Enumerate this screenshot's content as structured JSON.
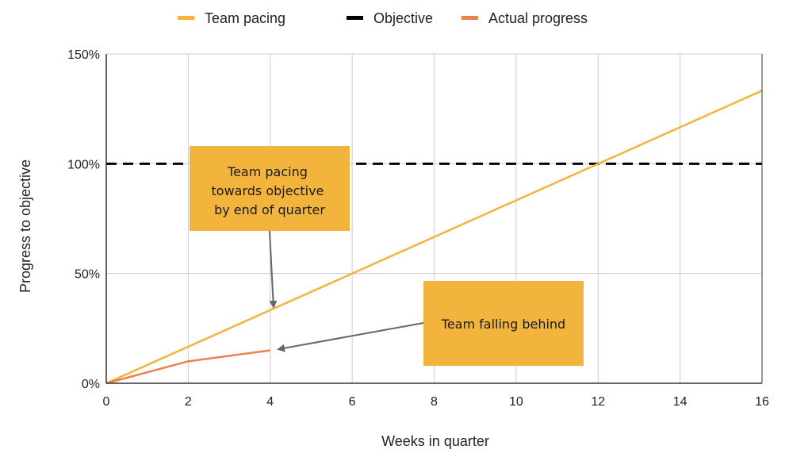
{
  "chart_data": {
    "type": "line",
    "xlabel": "Weeks in quarter",
    "ylabel": "Progress to objective",
    "xlim": [
      0,
      16
    ],
    "ylim": [
      0,
      150
    ],
    "x_ticks": [
      0,
      2,
      4,
      6,
      8,
      10,
      12,
      14,
      16
    ],
    "y_ticks": [
      0,
      50,
      100,
      150
    ],
    "y_tick_labels": [
      "0%",
      "50%",
      "100%",
      "150%"
    ],
    "grid": true,
    "legend_position": "top",
    "series": [
      {
        "name": "Team pacing",
        "color": "#f3b43e",
        "style": "solid",
        "x": [
          0,
          16
        ],
        "y": [
          0,
          133.3
        ]
      },
      {
        "name": "Objective",
        "color": "#000000",
        "style": "dashed",
        "x": [
          0,
          16
        ],
        "y": [
          100,
          100
        ]
      },
      {
        "name": "Actual progress",
        "color": "#e8834f",
        "style": "solid",
        "x": [
          0,
          2,
          4
        ],
        "y": [
          0,
          10,
          15
        ]
      }
    ],
    "annotations": [
      {
        "name": "pacing-callout",
        "lines": [
          "Team pacing",
          "towards objective",
          "by end of quarter"
        ],
        "box_color": "#f3b43e",
        "points_to": {
          "x": 4.1,
          "y": 34
        }
      },
      {
        "name": "behind-callout",
        "lines": [
          "Team falling behind"
        ],
        "box_color": "#f3b43e",
        "points_to": {
          "x": 4.2,
          "y": 15.5
        }
      }
    ]
  }
}
